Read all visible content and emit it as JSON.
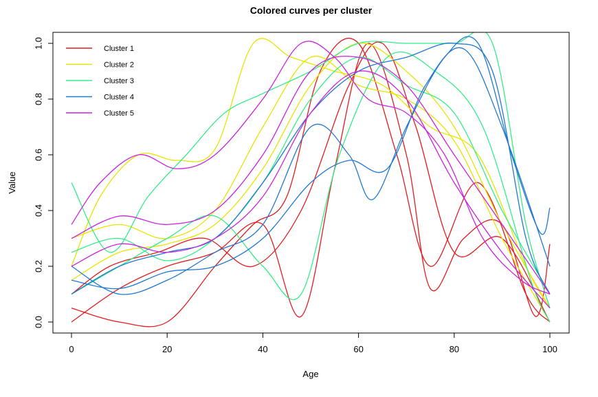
{
  "chart_data": {
    "type": "line",
    "title": "Colored curves per cluster",
    "xlabel": "Age",
    "ylabel": "Value",
    "xlim": [
      0,
      100
    ],
    "ylim": [
      0,
      1
    ],
    "x_ticks": [
      "0",
      "20",
      "40",
      "60",
      "80",
      "100"
    ],
    "y_ticks": [
      "0.0",
      "0.2",
      "0.4",
      "0.6",
      "0.8",
      "1.0"
    ],
    "grid": false,
    "legend_position": "top-left",
    "series": [
      {
        "name": "Cluster 1",
        "color": "#e41a1c",
        "curves": [
          {
            "x": [
              0,
              10,
              20,
              30,
              40,
              48,
              55,
              62,
              70,
              75,
              82,
              90,
              97,
              100
            ],
            "y": [
              0.0,
              0.12,
              0.2,
              0.25,
              0.35,
              0.02,
              0.55,
              1.0,
              0.6,
              0.12,
              0.3,
              0.35,
              0.02,
              0.28
            ]
          },
          {
            "x": [
              0,
              10,
              20,
              30,
              38,
              45,
              52,
              60,
              68,
              75,
              85,
              95,
              100
            ],
            "y": [
              0.05,
              0.0,
              0.0,
              0.2,
              0.35,
              0.45,
              0.9,
              1.0,
              0.6,
              0.2,
              0.5,
              0.1,
              0.0
            ]
          },
          {
            "x": [
              0,
              8,
              18,
              28,
              38,
              48,
              58,
              65,
              72,
              80,
              90,
              100
            ],
            "y": [
              0.1,
              0.2,
              0.25,
              0.3,
              0.2,
              0.4,
              0.85,
              1.0,
              0.7,
              0.25,
              0.3,
              0.0
            ]
          }
        ]
      },
      {
        "name": "Cluster 2",
        "color": "#e8e400",
        "curves": [
          {
            "x": [
              0,
              6,
              14,
              22,
              30,
              38,
              46,
              55,
              65,
              75,
              85,
              95,
              100
            ],
            "y": [
              0.2,
              0.45,
              0.6,
              0.58,
              0.62,
              1.0,
              0.95,
              0.9,
              0.85,
              0.7,
              0.6,
              0.2,
              0.05
            ]
          },
          {
            "x": [
              0,
              10,
              20,
              30,
              40,
              50,
              60,
              70,
              80,
              90,
              100
            ],
            "y": [
              0.3,
              0.35,
              0.3,
              0.4,
              0.7,
              0.95,
              0.85,
              0.8,
              0.65,
              0.3,
              0.0
            ]
          },
          {
            "x": [
              0,
              10,
              20,
              30,
              40,
              50,
              60,
              70,
              80,
              90,
              100
            ],
            "y": [
              0.15,
              0.25,
              0.28,
              0.35,
              0.55,
              0.85,
              1.0,
              0.9,
              0.7,
              0.35,
              0.05
            ]
          }
        ]
      },
      {
        "name": "Cluster 3",
        "color": "#33ee88",
        "curves": [
          {
            "x": [
              0,
              8,
              16,
              24,
              32,
              40,
              50,
              60,
              70,
              80,
              88,
              95,
              100
            ],
            "y": [
              0.5,
              0.25,
              0.45,
              0.6,
              0.75,
              0.82,
              0.9,
              1.0,
              1.0,
              1.0,
              1.0,
              0.35,
              0.05
            ]
          },
          {
            "x": [
              0,
              10,
              20,
              30,
              40,
              48,
              56,
              66,
              76,
              86,
              96,
              100
            ],
            "y": [
              0.1,
              0.2,
              0.3,
              0.38,
              0.2,
              0.1,
              0.6,
              0.95,
              0.9,
              0.7,
              0.15,
              0.0
            ]
          },
          {
            "x": [
              0,
              10,
              20,
              30,
              40,
              50,
              60,
              70,
              80,
              90,
              100
            ],
            "y": [
              0.25,
              0.3,
              0.22,
              0.3,
              0.5,
              0.8,
              0.95,
              0.85,
              0.75,
              0.4,
              0.1
            ]
          }
        ]
      },
      {
        "name": "Cluster 4",
        "color": "#1f78d1",
        "curves": [
          {
            "x": [
              0,
              10,
              20,
              30,
              40,
              50,
              58,
              63,
              70,
              78,
              85,
              92,
              98,
              100
            ],
            "y": [
              0.2,
              0.1,
              0.15,
              0.25,
              0.35,
              0.7,
              0.6,
              0.44,
              0.7,
              0.95,
              1.0,
              0.6,
              0.32,
              0.41
            ]
          },
          {
            "x": [
              0,
              10,
              20,
              30,
              40,
              50,
              60,
              70,
              80,
              88,
              95,
              100
            ],
            "y": [
              0.1,
              0.2,
              0.25,
              0.3,
              0.5,
              0.75,
              0.9,
              0.95,
              1.0,
              0.9,
              0.3,
              0.1
            ]
          },
          {
            "x": [
              0,
              10,
              20,
              30,
              40,
              50,
              58,
              66,
              74,
              82,
              90,
              100
            ],
            "y": [
              0.15,
              0.12,
              0.18,
              0.2,
              0.3,
              0.5,
              0.58,
              0.55,
              0.85,
              0.98,
              0.7,
              0.2
            ]
          }
        ]
      },
      {
        "name": "Cluster 5",
        "color": "#cc22dd",
        "curves": [
          {
            "x": [
              0,
              6,
              14,
              22,
              30,
              40,
              48,
              55,
              62,
              70,
              78,
              86,
              94,
              100
            ],
            "y": [
              0.35,
              0.5,
              0.6,
              0.55,
              0.6,
              0.8,
              1.0,
              0.95,
              0.8,
              0.75,
              0.6,
              0.3,
              0.15,
              0.1
            ]
          },
          {
            "x": [
              0,
              10,
              20,
              30,
              40,
              50,
              60,
              70,
              80,
              90,
              100
            ],
            "y": [
              0.3,
              0.38,
              0.35,
              0.4,
              0.6,
              0.9,
              0.95,
              0.85,
              0.6,
              0.35,
              0.1
            ]
          },
          {
            "x": [
              0,
              10,
              20,
              30,
              40,
              50,
              60,
              70,
              80,
              90,
              100
            ],
            "y": [
              0.2,
              0.28,
              0.25,
              0.3,
              0.45,
              0.75,
              0.9,
              0.8,
              0.5,
              0.25,
              0.05
            ]
          }
        ]
      }
    ]
  }
}
